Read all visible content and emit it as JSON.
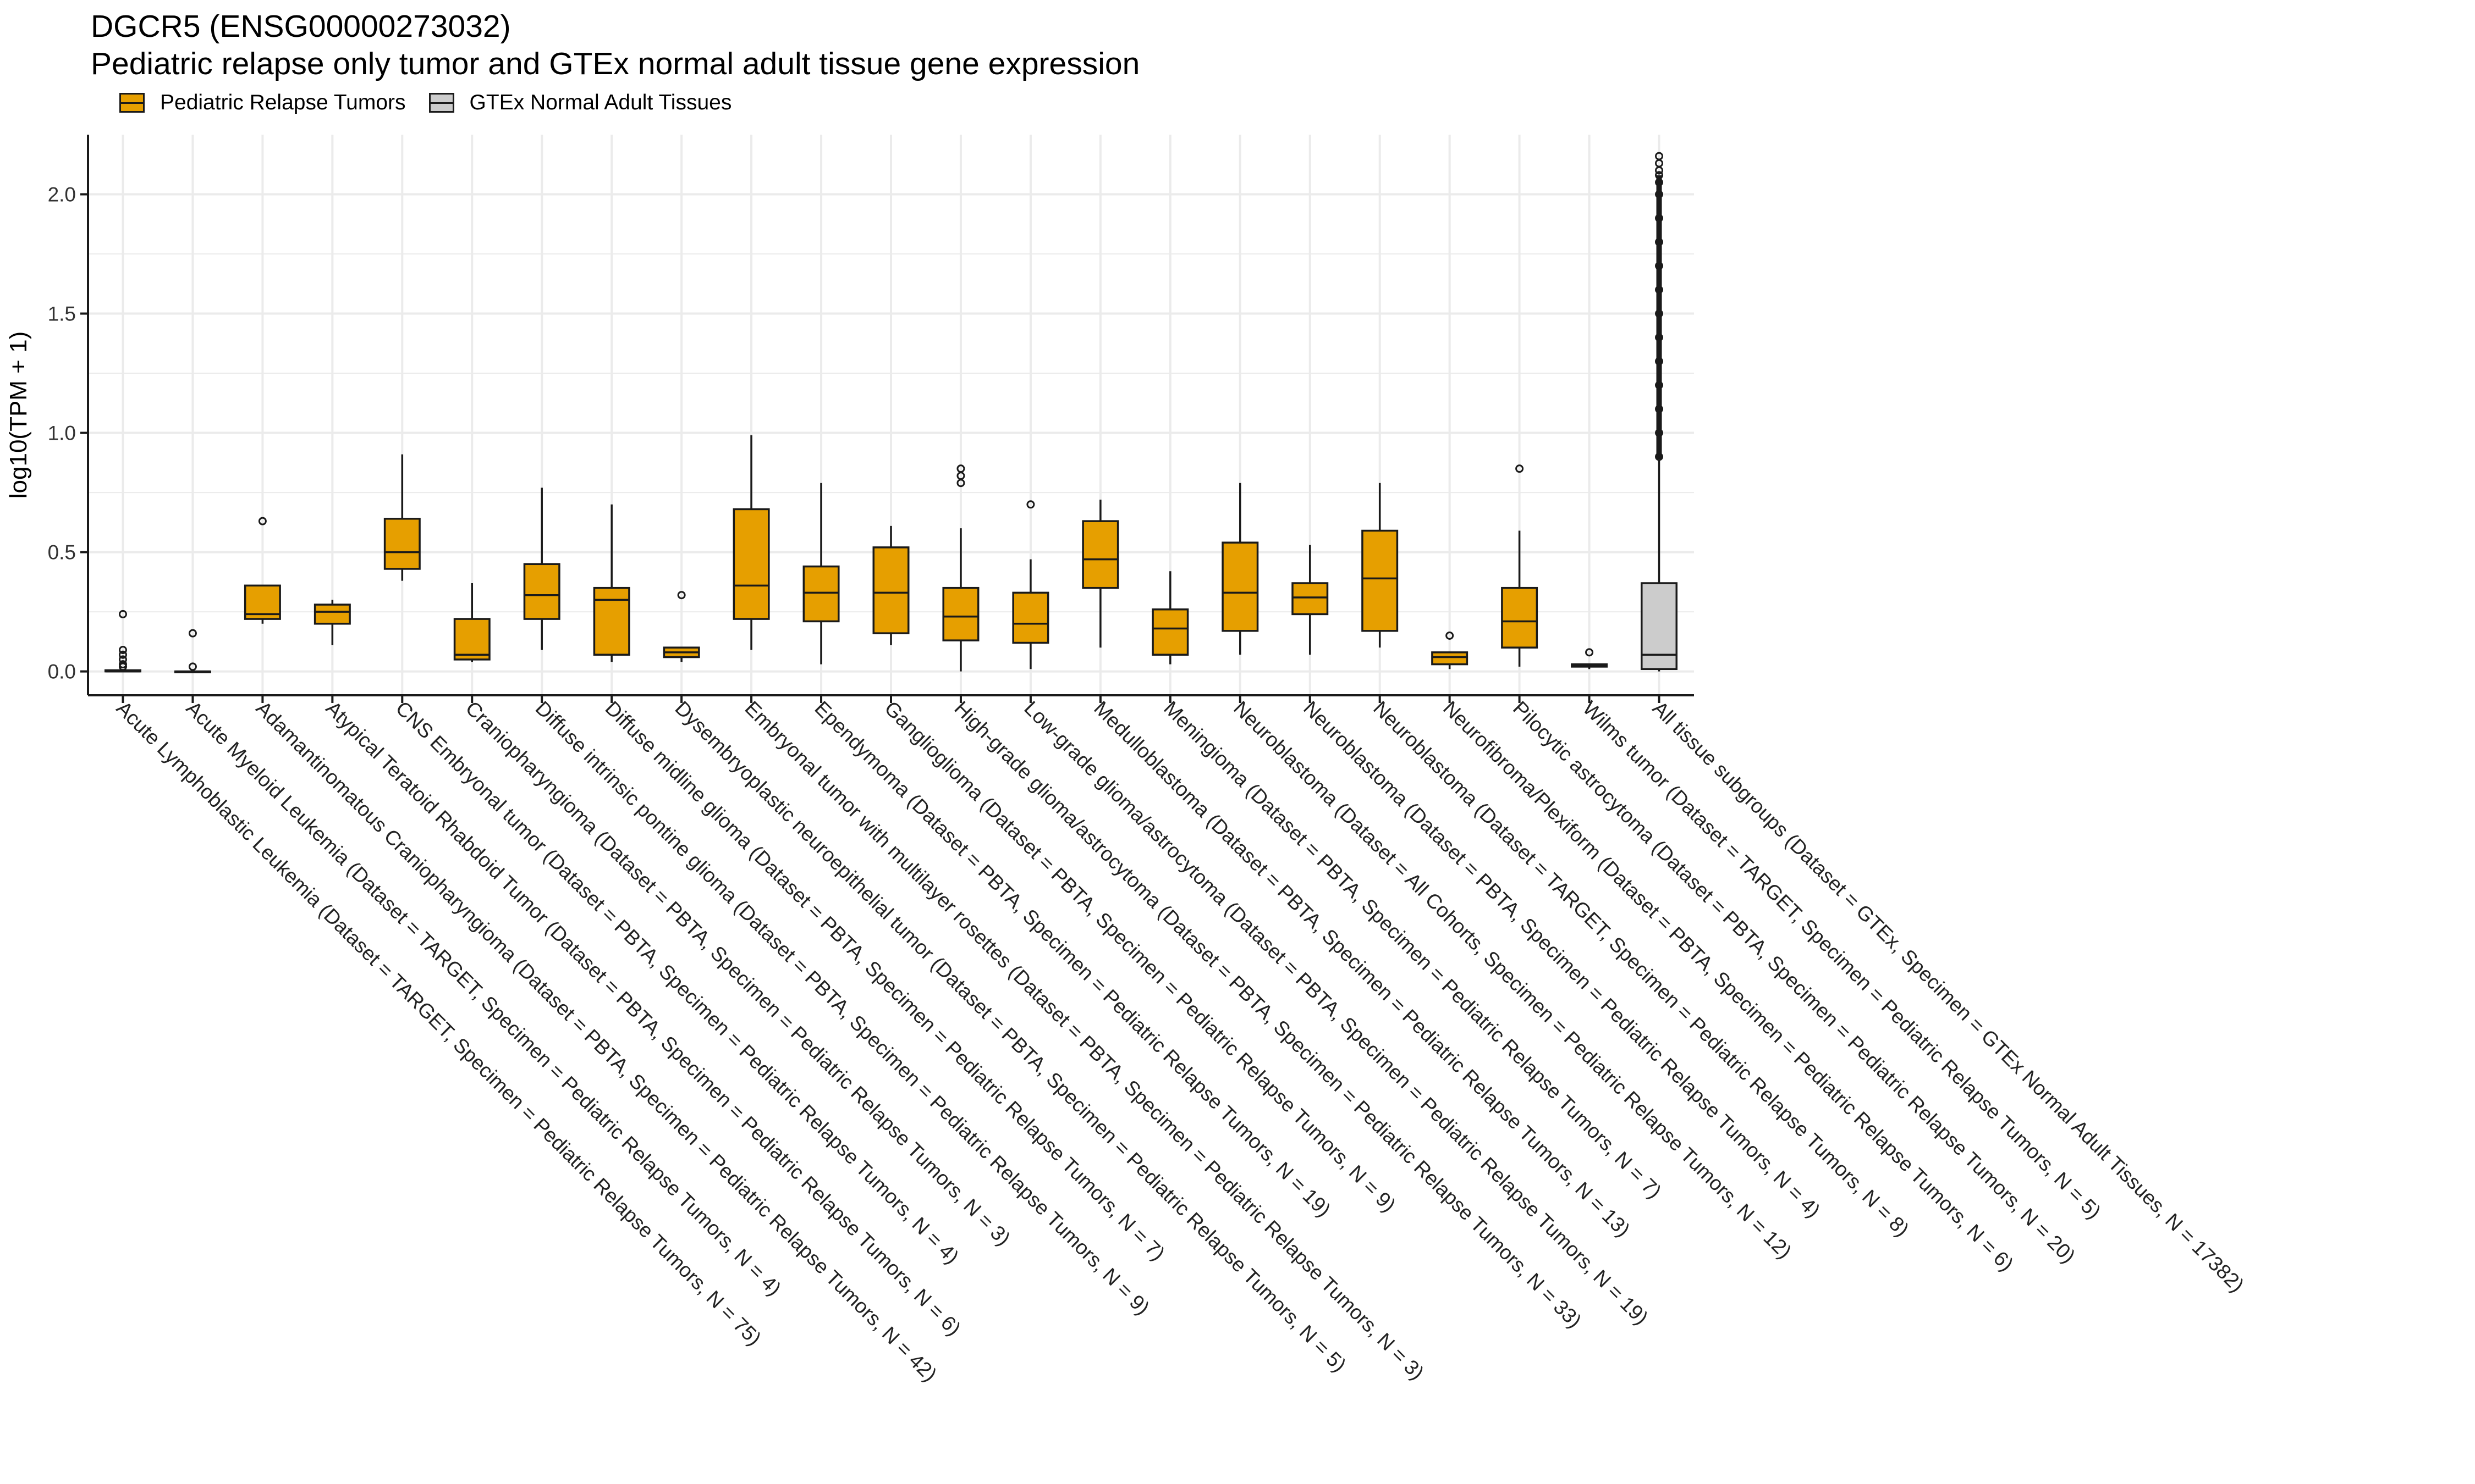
{
  "title": "DGCR5 (ENSG00000273032)",
  "subtitle": "Pediatric relapse only tumor and GTEx normal adult tissue gene expression",
  "colors": {
    "tumor": "#E69F00",
    "normal": "#CCCCCC",
    "grid": "#EBEBEB",
    "ink": "#1a1a1a"
  },
  "legend": [
    {
      "label": "Pediatric Relapse Tumors",
      "color": "#E69F00"
    },
    {
      "label": "GTEx Normal Adult Tissues",
      "color": "#CCCCCC"
    }
  ],
  "chart_data": {
    "type": "boxplot",
    "title": "DGCR5 (ENSG00000273032)",
    "subtitle": "Pediatric relapse only tumor and GTEx normal adult tissue gene expression",
    "xlabel": "",
    "ylabel": "log10(TPM + 1)",
    "ylim": [
      -0.1,
      2.25
    ],
    "yticks": [
      0.0,
      0.5,
      1.0,
      1.5,
      2.0
    ],
    "ytick_labels": [
      "0.0",
      "0.5",
      "1.0",
      "1.5",
      "2.0"
    ],
    "grid": true,
    "legend_position": "top-left",
    "categories": [
      {
        "label": "Acute Lymphoblastic Leukemia  (Dataset = TARGET, Specimen = Pediatric Relapse Tumors, N = 75)",
        "group": "tumor",
        "min": 0.0,
        "q1": 0.0,
        "median": 0.0,
        "q3": 0.005,
        "max": 0.01,
        "outliers": [
          0.02,
          0.03,
          0.05,
          0.07,
          0.09,
          0.24
        ]
      },
      {
        "label": "Acute Myeloid Leukemia  (Dataset = TARGET, Specimen = Pediatric Relapse Tumors, N = 4)",
        "group": "tumor",
        "min": 0.0,
        "q1": 0.0,
        "median": 0.0,
        "q3": 0.0,
        "max": 0.0,
        "outliers": [
          0.02,
          0.16
        ]
      },
      {
        "label": "Adamantinomatous Craniopharyngioma  (Dataset = PBTA, Specimen = Pediatric Relapse Tumors, N = 42)",
        "group": "tumor",
        "min": 0.2,
        "q1": 0.22,
        "median": 0.24,
        "q3": 0.36,
        "max": 0.36,
        "outliers": [
          0.63
        ]
      },
      {
        "label": "Atypical Teratoid Rhabdoid Tumor  (Dataset = PBTA, Specimen = Pediatric Relapse Tumors, N = 6)",
        "group": "tumor",
        "min": 0.11,
        "q1": 0.2,
        "median": 0.25,
        "q3": 0.28,
        "max": 0.3,
        "outliers": []
      },
      {
        "label": "CNS Embryonal tumor  (Dataset = PBTA, Specimen = Pediatric Relapse Tumors, N = 4)",
        "group": "tumor",
        "min": 0.38,
        "q1": 0.43,
        "median": 0.5,
        "q3": 0.64,
        "max": 0.91,
        "outliers": []
      },
      {
        "label": "Craniopharyngioma  (Dataset = PBTA, Specimen = Pediatric Relapse Tumors, N = 3)",
        "group": "tumor",
        "min": 0.04,
        "q1": 0.05,
        "median": 0.07,
        "q3": 0.22,
        "max": 0.37,
        "outliers": []
      },
      {
        "label": "Diffuse intrinsic pontine glioma  (Dataset = PBTA, Specimen = Pediatric Relapse Tumors, N = 9)",
        "group": "tumor",
        "min": 0.09,
        "q1": 0.22,
        "median": 0.32,
        "q3": 0.45,
        "max": 0.77,
        "outliers": []
      },
      {
        "label": "Diffuse midline glioma  (Dataset = PBTA, Specimen = Pediatric Relapse Tumors, N = 7)",
        "group": "tumor",
        "min": 0.04,
        "q1": 0.07,
        "median": 0.3,
        "q3": 0.35,
        "max": 0.7,
        "outliers": []
      },
      {
        "label": "Dysembryoplastic neuroepithelial tumor  (Dataset = PBTA, Specimen = Pediatric Relapse Tumors, N = 5)",
        "group": "tumor",
        "min": 0.04,
        "q1": 0.06,
        "median": 0.08,
        "q3": 0.1,
        "max": 0.1,
        "outliers": [
          0.32
        ]
      },
      {
        "label": "Embryonal tumor with multilayer rosettes  (Dataset = PBTA, Specimen = Pediatric Relapse Tumors, N = 3)",
        "group": "tumor",
        "min": 0.09,
        "q1": 0.22,
        "median": 0.36,
        "q3": 0.68,
        "max": 0.99,
        "outliers": []
      },
      {
        "label": "Ependymoma  (Dataset = PBTA, Specimen = Pediatric Relapse Tumors, N = 19)",
        "group": "tumor",
        "min": 0.03,
        "q1": 0.21,
        "median": 0.33,
        "q3": 0.44,
        "max": 0.79,
        "outliers": []
      },
      {
        "label": "Ganglioglioma  (Dataset = PBTA, Specimen = Pediatric Relapse Tumors, N = 9)",
        "group": "tumor",
        "min": 0.11,
        "q1": 0.16,
        "median": 0.33,
        "q3": 0.52,
        "max": 0.61,
        "outliers": []
      },
      {
        "label": "High-grade glioma/astrocytoma  (Dataset = PBTA, Specimen = Pediatric Relapse Tumors, N = 33)",
        "group": "tumor",
        "min": 0.0,
        "q1": 0.13,
        "median": 0.23,
        "q3": 0.35,
        "max": 0.6,
        "outliers": [
          0.79,
          0.82,
          0.85
        ]
      },
      {
        "label": "Low-grade glioma/astrocytoma  (Dataset = PBTA, Specimen = Pediatric Relapse Tumors, N = 19)",
        "group": "tumor",
        "min": 0.01,
        "q1": 0.12,
        "median": 0.2,
        "q3": 0.33,
        "max": 0.47,
        "outliers": [
          0.7
        ]
      },
      {
        "label": "Medulloblastoma  (Dataset = PBTA, Specimen = Pediatric Relapse Tumors, N = 13)",
        "group": "tumor",
        "min": 0.1,
        "q1": 0.35,
        "median": 0.47,
        "q3": 0.63,
        "max": 0.72,
        "outliers": []
      },
      {
        "label": "Meningioma  (Dataset = PBTA, Specimen = Pediatric Relapse Tumors, N = 7)",
        "group": "tumor",
        "min": 0.03,
        "q1": 0.07,
        "median": 0.18,
        "q3": 0.26,
        "max": 0.42,
        "outliers": []
      },
      {
        "label": "Neuroblastoma  (Dataset = All Cohorts, Specimen = Pediatric Relapse Tumors, N = 12)",
        "group": "tumor",
        "min": 0.07,
        "q1": 0.17,
        "median": 0.33,
        "q3": 0.54,
        "max": 0.79,
        "outliers": []
      },
      {
        "label": "Neuroblastoma  (Dataset = PBTA, Specimen = Pediatric Relapse Tumors, N = 4)",
        "group": "tumor",
        "min": 0.07,
        "q1": 0.24,
        "median": 0.31,
        "q3": 0.37,
        "max": 0.53,
        "outliers": []
      },
      {
        "label": "Neuroblastoma  (Dataset = TARGET, Specimen = Pediatric Relapse Tumors, N = 8)",
        "group": "tumor",
        "min": 0.1,
        "q1": 0.17,
        "median": 0.39,
        "q3": 0.59,
        "max": 0.79,
        "outliers": []
      },
      {
        "label": "Neurofibroma/Plexiform  (Dataset = PBTA, Specimen = Pediatric Relapse Tumors, N = 6)",
        "group": "tumor",
        "min": 0.01,
        "q1": 0.03,
        "median": 0.06,
        "q3": 0.08,
        "max": 0.08,
        "outliers": [
          0.15
        ]
      },
      {
        "label": "Pilocytic astrocytoma  (Dataset = PBTA, Specimen = Pediatric Relapse Tumors, N = 20)",
        "group": "tumor",
        "min": 0.02,
        "q1": 0.1,
        "median": 0.21,
        "q3": 0.35,
        "max": 0.59,
        "outliers": [
          0.85
        ]
      },
      {
        "label": "Wilms tumor  (Dataset = TARGET, Specimen = Pediatric Relapse Tumors, N = 5)",
        "group": "tumor",
        "min": 0.01,
        "q1": 0.02,
        "median": 0.025,
        "q3": 0.03,
        "max": 0.03,
        "outliers": [
          0.08
        ]
      },
      {
        "label": "All tissue subgroups  (Dataset = GTEx, Specimen = GTEx Normal Adult Tissues, N = 17382)",
        "group": "normal",
        "min": 0.0,
        "q1": 0.01,
        "median": 0.07,
        "q3": 0.37,
        "max": 0.89,
        "outliers": [
          0.9,
          1.0,
          1.1,
          1.2,
          1.3,
          1.4,
          1.5,
          1.6,
          1.7,
          1.8,
          1.9,
          2.0,
          2.05,
          2.08,
          2.1,
          2.13,
          2.16
        ]
      }
    ]
  }
}
